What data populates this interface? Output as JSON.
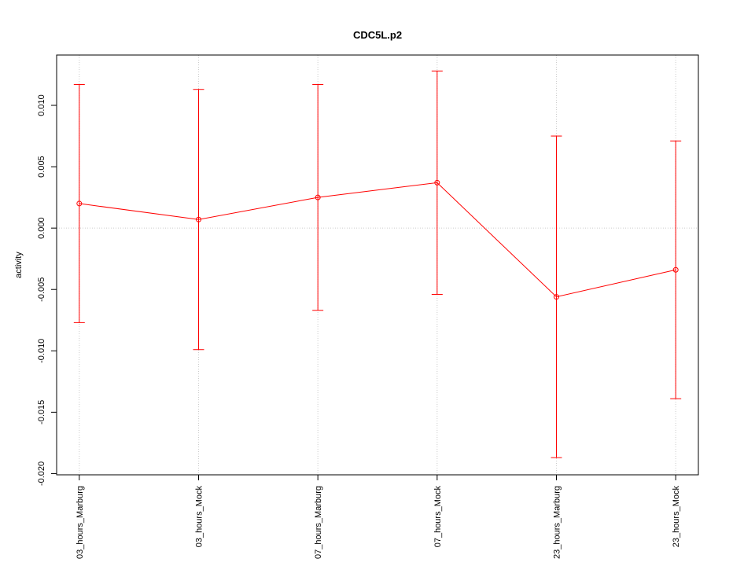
{
  "chart_data": {
    "type": "errorbar-line",
    "title": "CDC5L.p2",
    "ylabel": "activity",
    "categories": [
      "03_hours_Marburg",
      "03_hours_Mock",
      "07_hours_Marburg",
      "07_hours_Mock",
      "23_hours_Marburg",
      "23_hours_Mock"
    ],
    "series": [
      {
        "name": "CDC5L.p2",
        "color": "#ff0000",
        "values": [
          0.002,
          0.0007,
          0.0025,
          0.0037,
          -0.0056,
          -0.0034
        ],
        "errors": [
          0.0097,
          0.0106,
          0.0092,
          0.0091,
          0.0131,
          0.0105
        ]
      }
    ],
    "ylim": [
      -0.0201,
      0.0141
    ],
    "yticks": [
      {
        "value": -0.02,
        "label": "-0.020"
      },
      -0.015,
      {
        "value": -0.01,
        "label": "-0.010"
      },
      -0.005,
      {
        "value": 0,
        "label": "0.000"
      },
      0.005,
      {
        "value": 0.01,
        "label": "0.010"
      }
    ],
    "reference_line": 0,
    "grid": "x"
  }
}
